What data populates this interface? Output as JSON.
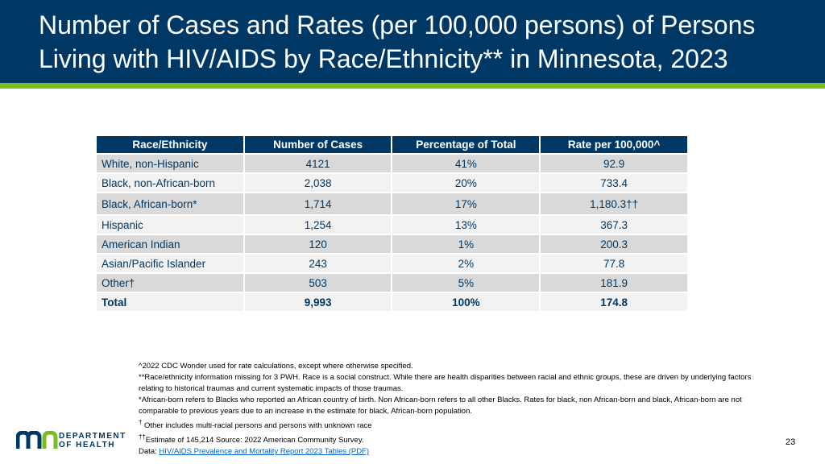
{
  "title": {
    "line1": "Number of Cases and Rates (per 100,000 persons) of Persons",
    "line2": "Living with HIV/AIDS by Race/Ethnicity** in Minnesota, 2023"
  },
  "table": {
    "headers": [
      "Race/Ethnicity",
      "Number of Cases",
      "Percentage of Total",
      "Rate per 100,000^"
    ],
    "rows": [
      [
        "White, non-Hispanic",
        "4121",
        "41%",
        "92.9"
      ],
      [
        "Black, non-African-born",
        "2,038",
        "20%",
        "733.4"
      ],
      [
        "Black, African-born*",
        "1,714",
        "17%",
        "1,180.3††"
      ],
      [
        "Hispanic",
        "1,254",
        "13%",
        "367.3"
      ],
      [
        "American Indian",
        "120",
        "1%",
        "200.3"
      ],
      [
        "Asian/Pacific Islander",
        "243",
        "2%",
        "77.8"
      ],
      [
        "Other†",
        "503",
        "5%",
        "181.9"
      ],
      [
        "Total",
        "9,993",
        "100%",
        "174.8"
      ]
    ]
  },
  "notes": {
    "n1": "^2022 CDC Wonder used for rate calculations, except where otherwise specified.",
    "n2": "**Race/ethnicity information missing for 3 PWH. Race is a social construct. While there are health disparities between racial and ethnic groups, these are driven by underlying factors relating to historical traumas and current systematic impacts of those traumas.",
    "n3": "*African-born refers to Blacks who reported an African country of birth. Non African-born refers to all other Blacks. Rates for black, non African-born and black, African-born are not comparable to previous years due to an increase in the estimate for black, African-born population.",
    "n4_mark": "†",
    "n4": " Other includes multi-racial persons and persons with unknown race",
    "n5_mark": "††",
    "n5": "Estimate of 145,214 Source: 2022 American Community Survey.",
    "n6_prefix": "Data: ",
    "n6_link": "HIV/AIDS Prevalence and Mortality Report 2023 Tables (PDF)"
  },
  "logo": {
    "line1": "DEPARTMENT",
    "line2": "OF HEALTH"
  },
  "page_number": "23",
  "colors": {
    "navy": "#003865",
    "green": "#78BE21",
    "row_dark": "#d9d9d9",
    "row_light": "#f2f2f2"
  }
}
